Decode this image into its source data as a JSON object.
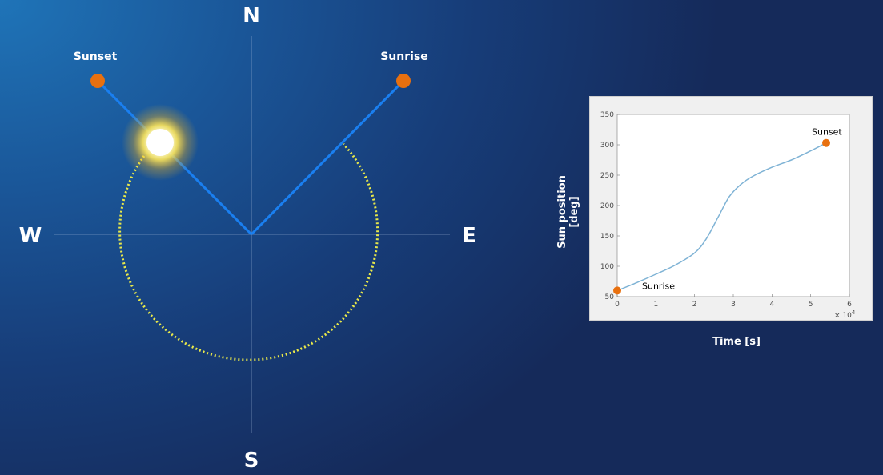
{
  "compass": {
    "north": "N",
    "south": "S",
    "east": "E",
    "west": "W",
    "sunset_label": "Sunset",
    "sunrise_label": "Sunrise"
  },
  "colors": {
    "marker": "#e8700f",
    "ray": "#1a7ff0",
    "arc": "#e8e84a",
    "curve": "#7fb3d5"
  },
  "chart_data": {
    "type": "line",
    "xlabel": "Time [s]",
    "ylabel": "Sun position [deg]",
    "x_exponent": "× 10",
    "x_exponent_power": "4",
    "xlim": [
      0,
      6
    ],
    "ylim": [
      50,
      350
    ],
    "x_ticks": [
      "0",
      "1",
      "2",
      "3",
      "4",
      "5",
      "6"
    ],
    "y_ticks": [
      "50",
      "100",
      "150",
      "200",
      "250",
      "300",
      "350"
    ],
    "series": [
      {
        "x": [
          0,
          0.5,
          1,
          1.5,
          2,
          2.3,
          2.6,
          2.9,
          3.2,
          3.5,
          4,
          4.5,
          5,
          5.4
        ],
        "y": [
          60,
          73,
          87,
          102,
          122,
          145,
          180,
          215,
          235,
          248,
          263,
          275,
          290,
          303
        ]
      }
    ],
    "annotations": [
      {
        "label": "Sunrise",
        "x": 0,
        "y": 60
      },
      {
        "label": "Sunset",
        "x": 5.4,
        "y": 303
      }
    ]
  }
}
